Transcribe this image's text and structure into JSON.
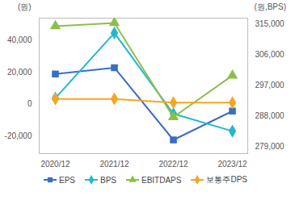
{
  "chart_data": {
    "type": "line",
    "y_label": "(원)",
    "y2_label": "(원,BPS)",
    "categories": [
      "2020/12",
      "2021/12",
      "2022/12",
      "2023/12"
    ],
    "ylim": [
      -31000,
      54000
    ],
    "yticks": [
      {
        "value": -20000,
        "label": "-20,000"
      },
      0,
      {
        "value": 20000,
        "label": "20,000"
      },
      {
        "value": 40000,
        "label": "40,000"
      }
    ],
    "y2lim": [
      277000,
      316750
    ],
    "y2ticks": [
      {
        "value": 279000,
        "label": "279,000"
      },
      {
        "value": 288000,
        "label": "288,000"
      },
      {
        "value": 297000,
        "label": "297,000"
      },
      {
        "value": 306000,
        "label": "306,000"
      },
      {
        "value": 315000,
        "label": "315,000"
      }
    ],
    "grid": false,
    "legend": "bottom",
    "series": [
      {
        "name": "EPS",
        "color": "#3a6fc4",
        "marker": "square",
        "values": [
          19000,
          22900,
          -22400,
          -4300
        ]
      },
      {
        "name": "BPS",
        "color": "#22b8cf",
        "marker": "diamond",
        "axis": "y2",
        "values": [
          293300,
          312400,
          288700,
          283600
        ]
      },
      {
        "name": "EBITDAPS",
        "color": "#8cbf4a",
        "marker": "triangle",
        "values": [
          49000,
          51000,
          -8100,
          18000
        ]
      },
      {
        "name": "보통주DPS",
        "color": "#f5a623",
        "marker": "diamond",
        "values": [
          3300,
          3300,
          1000,
          1000
        ]
      }
    ]
  }
}
